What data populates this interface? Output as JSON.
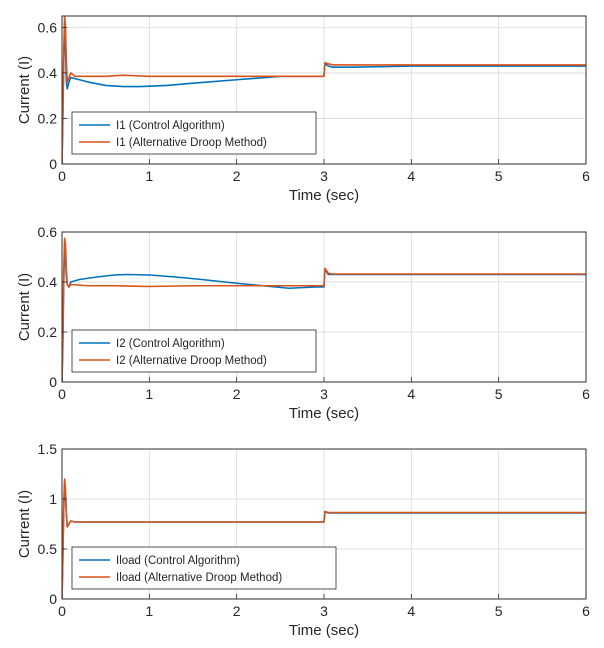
{
  "colors": {
    "control": "#0072BD",
    "droop": "#D95319"
  },
  "chart_data": [
    {
      "type": "line",
      "xlabel": "Time (sec)",
      "ylabel": "Current (I)",
      "xlim": [
        0,
        6
      ],
      "ylim": [
        0,
        0.65
      ],
      "xticks": [
        0,
        1,
        2,
        3,
        4,
        5,
        6
      ],
      "yticks": [
        0,
        0.2,
        0.4,
        0.6
      ],
      "ytick_labels": [
        "0",
        "0.2",
        "0.4",
        "0.6"
      ],
      "grid": true,
      "legend_position": "lower-left",
      "series": [
        {
          "name": "I1 (Control Algorithm)",
          "color": "#0072BD",
          "x": [
            0,
            0.01,
            0.02,
            0.03,
            0.04,
            0.05,
            0.06,
            0.08,
            0.1,
            0.15,
            0.3,
            0.5,
            0.7,
            0.9,
            1.2,
            1.5,
            2.0,
            2.5,
            2.9,
            3.0,
            3.01,
            3.05,
            3.1,
            3.3,
            4.0,
            5.0,
            6.0
          ],
          "y": [
            0.0,
            0.2,
            0.45,
            0.6,
            0.52,
            0.36,
            0.33,
            0.36,
            0.38,
            0.375,
            0.36,
            0.345,
            0.34,
            0.34,
            0.345,
            0.355,
            0.37,
            0.385,
            0.385,
            0.385,
            0.44,
            0.43,
            0.425,
            0.425,
            0.43,
            0.43,
            0.43
          ]
        },
        {
          "name": "I1 (Alternative Droop Method)",
          "color": "#D95319",
          "x": [
            0,
            0.01,
            0.02,
            0.03,
            0.04,
            0.05,
            0.06,
            0.08,
            0.1,
            0.15,
            0.3,
            0.5,
            0.7,
            1.0,
            2.0,
            2.5,
            2.9,
            3.0,
            3.01,
            3.05,
            3.1,
            4.0,
            5.0,
            6.0
          ],
          "y": [
            0.0,
            0.25,
            0.5,
            0.65,
            0.6,
            0.45,
            0.36,
            0.38,
            0.4,
            0.385,
            0.385,
            0.385,
            0.39,
            0.385,
            0.385,
            0.385,
            0.385,
            0.385,
            0.445,
            0.44,
            0.435,
            0.435,
            0.435,
            0.435
          ]
        }
      ]
    },
    {
      "type": "line",
      "xlabel": "Time (sec)",
      "ylabel": "Current (I)",
      "xlim": [
        0,
        6
      ],
      "ylim": [
        0,
        0.6
      ],
      "xticks": [
        0,
        1,
        2,
        3,
        4,
        5,
        6
      ],
      "yticks": [
        0,
        0.2,
        0.4,
        0.6
      ],
      "ytick_labels": [
        "0",
        "0.2",
        "0.4",
        "0.6"
      ],
      "grid": true,
      "legend_position": "lower-left",
      "series": [
        {
          "name": "I2 (Control Algorithm)",
          "color": "#0072BD",
          "x": [
            0,
            0.01,
            0.02,
            0.03,
            0.04,
            0.05,
            0.06,
            0.08,
            0.1,
            0.2,
            0.4,
            0.6,
            0.75,
            1.0,
            1.3,
            1.6,
            2.0,
            2.3,
            2.6,
            2.9,
            3.0,
            3.01,
            3.05,
            3.1,
            4.0,
            5.0,
            6.0
          ],
          "y": [
            0.0,
            0.15,
            0.4,
            0.55,
            0.5,
            0.42,
            0.39,
            0.38,
            0.4,
            0.41,
            0.42,
            0.428,
            0.43,
            0.428,
            0.42,
            0.41,
            0.395,
            0.385,
            0.375,
            0.38,
            0.38,
            0.45,
            0.43,
            0.43,
            0.43,
            0.43,
            0.43
          ]
        },
        {
          "name": "I2 (Alternative Droop Method)",
          "color": "#D95319",
          "x": [
            0,
            0.01,
            0.02,
            0.03,
            0.04,
            0.05,
            0.06,
            0.08,
            0.1,
            0.3,
            0.6,
            1.0,
            1.5,
            2.0,
            2.5,
            2.9,
            3.0,
            3.01,
            3.05,
            3.1,
            4.0,
            5.0,
            6.0
          ],
          "y": [
            0.0,
            0.2,
            0.45,
            0.575,
            0.55,
            0.45,
            0.39,
            0.38,
            0.39,
            0.385,
            0.385,
            0.382,
            0.385,
            0.385,
            0.385,
            0.385,
            0.385,
            0.455,
            0.435,
            0.432,
            0.432,
            0.432,
            0.432
          ]
        }
      ]
    },
    {
      "type": "line",
      "xlabel": "Time (sec)",
      "ylabel": "Current (I)",
      "xlim": [
        0,
        6
      ],
      "ylim": [
        0,
        1.5
      ],
      "xticks": [
        0,
        1,
        2,
        3,
        4,
        5,
        6
      ],
      "yticks": [
        0,
        0.5,
        1,
        1.5
      ],
      "ytick_labels": [
        "0",
        "0.5",
        "1",
        "1.5"
      ],
      "grid": true,
      "legend_position": "lower-left",
      "series": [
        {
          "name": "Iload (Control Algorithm)",
          "color": "#0072BD",
          "x": [
            0,
            0.01,
            0.02,
            0.03,
            0.04,
            0.05,
            0.06,
            0.08,
            0.1,
            0.15,
            0.5,
            1.0,
            2.0,
            2.9,
            3.0,
            3.01,
            3.05,
            3.1,
            4.0,
            5.0,
            6.0
          ],
          "y": [
            0.0,
            0.4,
            0.9,
            1.15,
            1.05,
            0.85,
            0.72,
            0.75,
            0.78,
            0.77,
            0.77,
            0.77,
            0.77,
            0.77,
            0.77,
            0.87,
            0.86,
            0.86,
            0.86,
            0.86,
            0.86
          ]
        },
        {
          "name": "Iload (Alternative Droop Method)",
          "color": "#D95319",
          "x": [
            0,
            0.01,
            0.02,
            0.03,
            0.04,
            0.05,
            0.06,
            0.08,
            0.1,
            0.15,
            0.5,
            1.0,
            2.0,
            2.9,
            3.0,
            3.01,
            3.05,
            3.1,
            4.0,
            5.0,
            6.0
          ],
          "y": [
            0.0,
            0.45,
            0.95,
            1.2,
            1.1,
            0.85,
            0.72,
            0.75,
            0.78,
            0.77,
            0.77,
            0.77,
            0.77,
            0.77,
            0.77,
            0.875,
            0.865,
            0.865,
            0.865,
            0.865,
            0.865
          ]
        }
      ]
    }
  ]
}
